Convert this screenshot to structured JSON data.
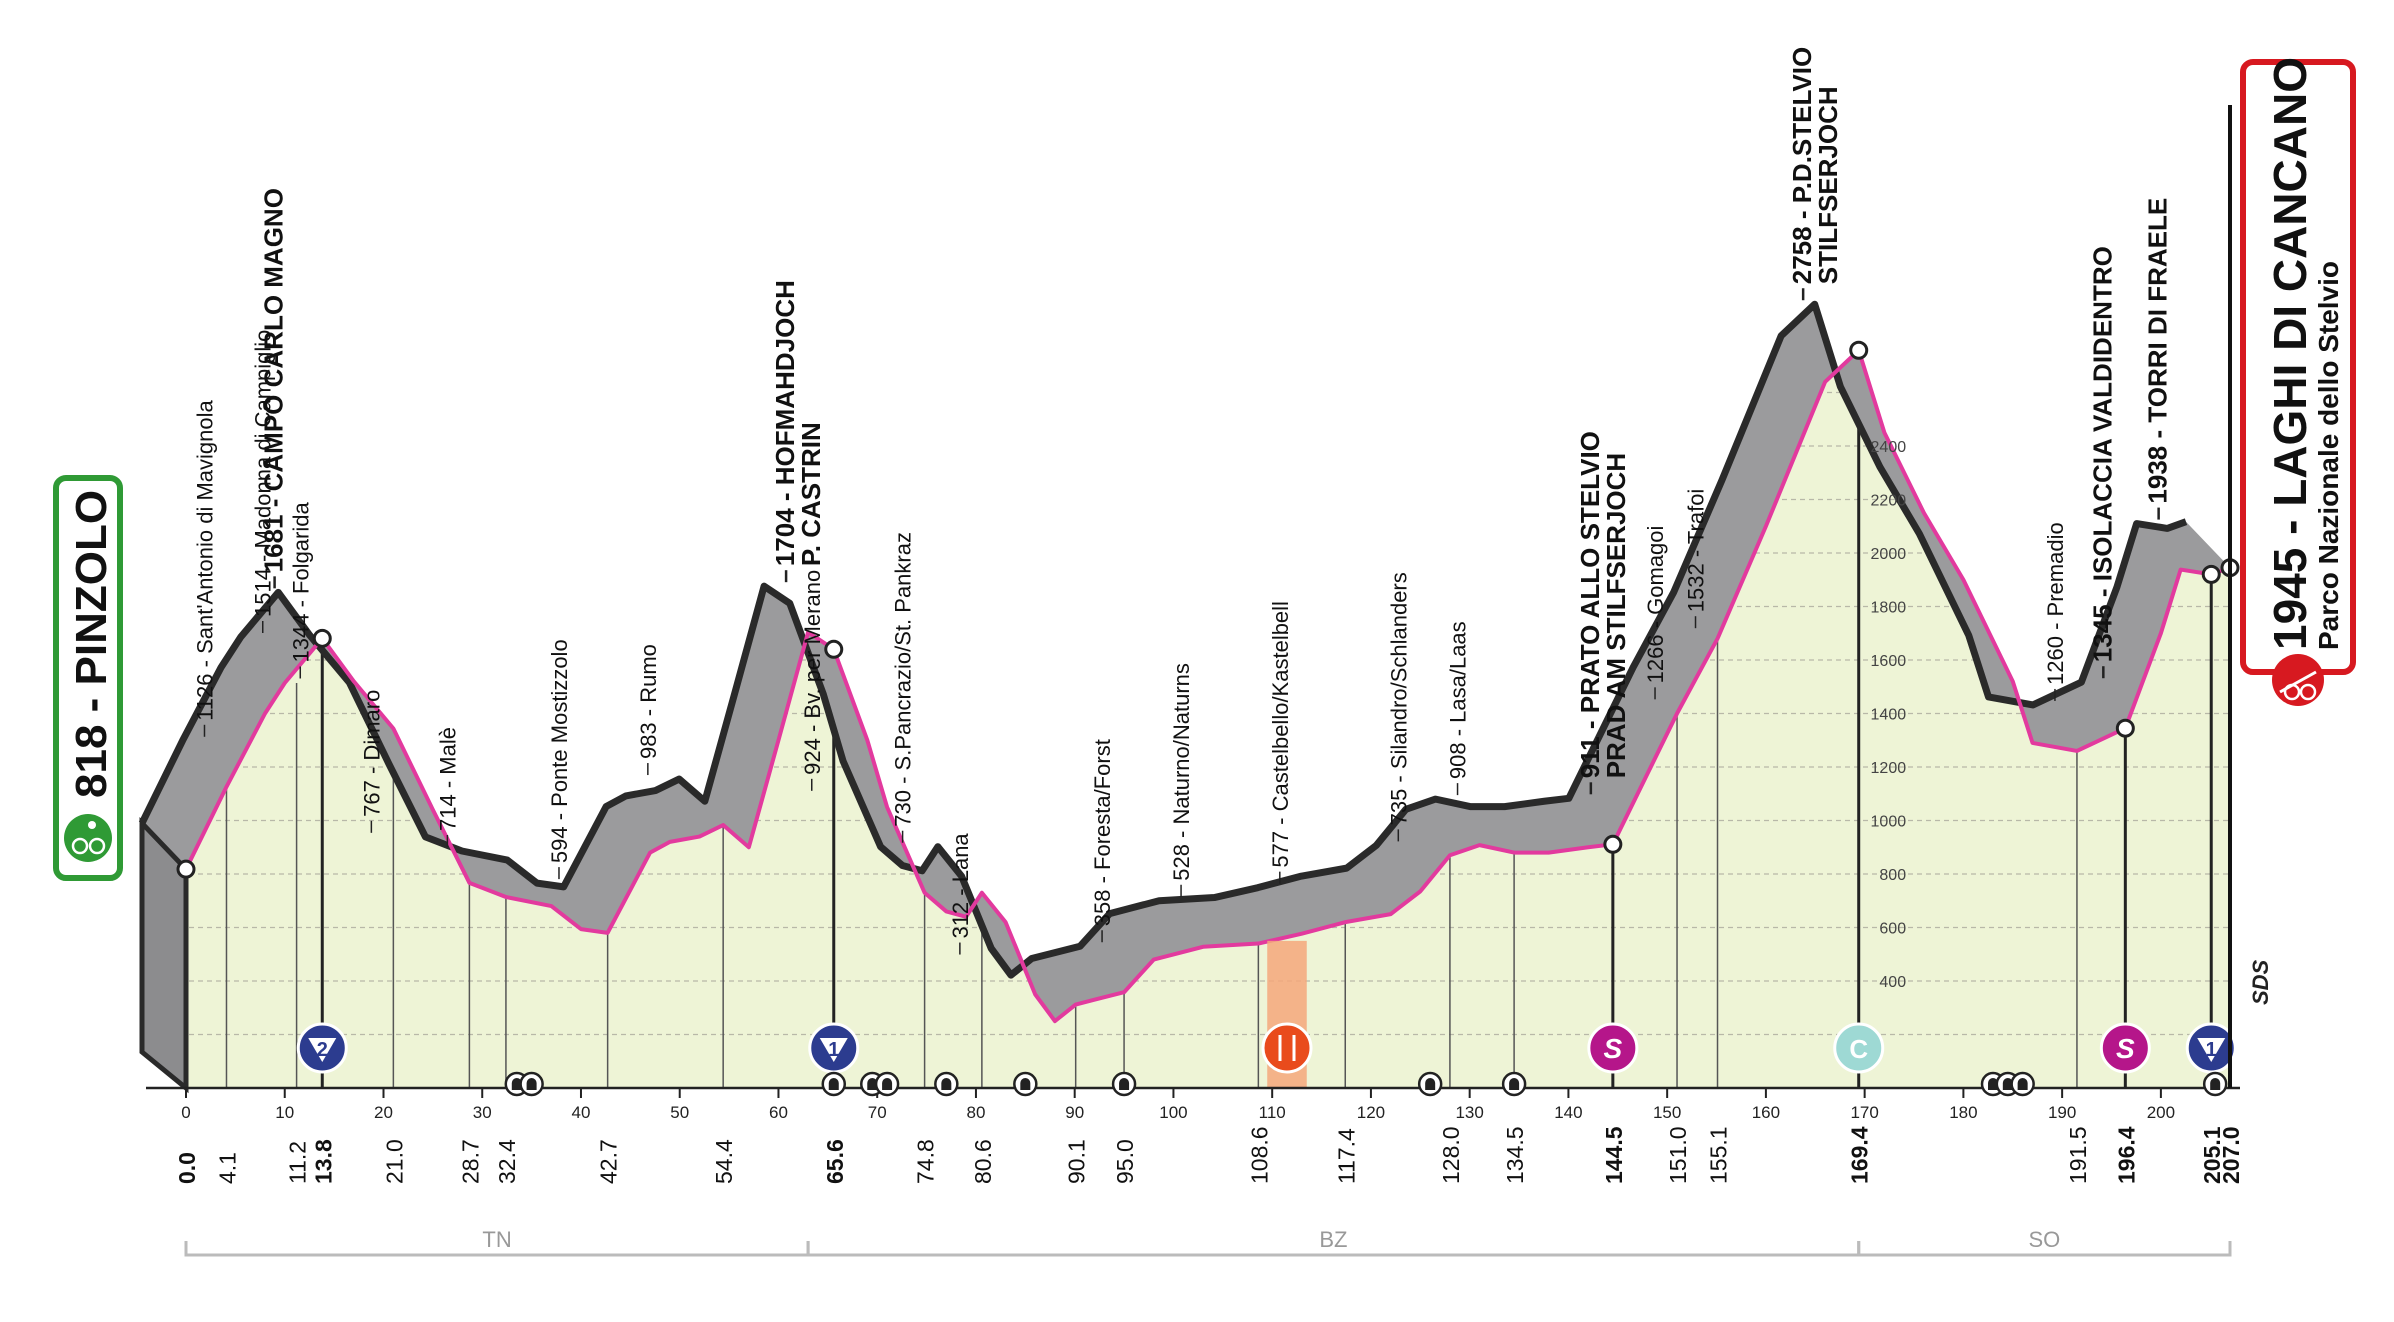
{
  "chart_data": {
    "type": "area",
    "title": "",
    "xlabel": "",
    "ylabel": "",
    "xlim": [
      0,
      207
    ],
    "ylim": [
      0,
      2800
    ],
    "colors": {
      "profile_fill": "#9b9b9d",
      "profile_edge": "#2a2a2a",
      "valley_fill": "#eef4d6",
      "route_line": "#e23a9e",
      "start_green": "#2f9a35",
      "finish_red": "#d71920",
      "feed_zone": "#f4a77b",
      "gpm_blue": "#2c3c8f",
      "sprint_magenta": "#b5168a",
      "cima_coppi": "#9ed9d4",
      "region_line": "#bbbbbb"
    },
    "start": {
      "altitude": "818",
      "name": "PINZOLO"
    },
    "finish": {
      "altitude": "1945",
      "name": "LAGHI DI CANCANO",
      "sub": "Parco Nazionale dello Stelvio"
    },
    "profile": [
      {
        "km": 0.0,
        "alt": 818
      },
      {
        "km": 4.1,
        "alt": 1126
      },
      {
        "km": 8.0,
        "alt": 1400
      },
      {
        "km": 10.0,
        "alt": 1514
      },
      {
        "km": 13.8,
        "alt": 1681
      },
      {
        "km": 17.0,
        "alt": 1520
      },
      {
        "km": 21.0,
        "alt": 1344
      },
      {
        "km": 25.0,
        "alt": 1040
      },
      {
        "km": 28.7,
        "alt": 767
      },
      {
        "km": 32.4,
        "alt": 714
      },
      {
        "km": 37.0,
        "alt": 680
      },
      {
        "km": 40.0,
        "alt": 594
      },
      {
        "km": 42.7,
        "alt": 580
      },
      {
        "km": 47.0,
        "alt": 880
      },
      {
        "km": 49.0,
        "alt": 920
      },
      {
        "km": 52.0,
        "alt": 940
      },
      {
        "km": 54.4,
        "alt": 983
      },
      {
        "km": 57.0,
        "alt": 900
      },
      {
        "km": 60.0,
        "alt": 1300
      },
      {
        "km": 63.0,
        "alt": 1704
      },
      {
        "km": 65.6,
        "alt": 1640
      },
      {
        "km": 69.0,
        "alt": 1300
      },
      {
        "km": 71.0,
        "alt": 1050
      },
      {
        "km": 74.8,
        "alt": 730
      },
      {
        "km": 77.0,
        "alt": 660
      },
      {
        "km": 79.0,
        "alt": 640
      },
      {
        "km": 80.6,
        "alt": 730
      },
      {
        "km": 83.0,
        "alt": 620
      },
      {
        "km": 86.0,
        "alt": 350
      },
      {
        "km": 88.0,
        "alt": 250
      },
      {
        "km": 90.1,
        "alt": 312
      },
      {
        "km": 92.0,
        "alt": 330
      },
      {
        "km": 95.0,
        "alt": 358
      },
      {
        "km": 98.0,
        "alt": 480
      },
      {
        "km": 103.0,
        "alt": 528
      },
      {
        "km": 108.6,
        "alt": 540
      },
      {
        "km": 113.0,
        "alt": 577
      },
      {
        "km": 117.4,
        "alt": 620
      },
      {
        "km": 122.0,
        "alt": 650
      },
      {
        "km": 125.0,
        "alt": 735
      },
      {
        "km": 128.0,
        "alt": 870
      },
      {
        "km": 131.0,
        "alt": 908
      },
      {
        "km": 134.5,
        "alt": 880
      },
      {
        "km": 138.0,
        "alt": 880
      },
      {
        "km": 142.0,
        "alt": 900
      },
      {
        "km": 144.5,
        "alt": 911
      },
      {
        "km": 151.0,
        "alt": 1400
      },
      {
        "km": 155.1,
        "alt": 1680
      },
      {
        "km": 160.0,
        "alt": 2100
      },
      {
        "km": 166.0,
        "alt": 2640
      },
      {
        "km": 169.4,
        "alt": 2758
      },
      {
        "km": 172.0,
        "alt": 2450
      },
      {
        "km": 176.0,
        "alt": 2150
      },
      {
        "km": 180.0,
        "alt": 1900
      },
      {
        "km": 185.0,
        "alt": 1520
      },
      {
        "km": 187.0,
        "alt": 1290
      },
      {
        "km": 191.5,
        "alt": 1260
      },
      {
        "km": 196.4,
        "alt": 1345
      },
      {
        "km": 200.0,
        "alt": 1700
      },
      {
        "km": 202.0,
        "alt": 1938
      },
      {
        "km": 205.1,
        "alt": 1920
      },
      {
        "km": 207.0,
        "alt": 1945
      }
    ],
    "y_ticks": [
      "400",
      "600",
      "800",
      "1000",
      "1200",
      "1400",
      "1600",
      "1800",
      "2000",
      "2200",
      "2400"
    ],
    "x_ticks": [
      "0",
      "10",
      "20",
      "30",
      "40",
      "50",
      "60",
      "70",
      "80",
      "90",
      "100",
      "110",
      "120",
      "130",
      "140",
      "150",
      "160",
      "170",
      "180",
      "190",
      "200"
    ],
    "km_labels": [
      {
        "km": 0.0,
        "text": "0.0",
        "bold": true
      },
      {
        "km": 4.1,
        "text": "4.1",
        "bold": false
      },
      {
        "km": 11.2,
        "text": "11.2",
        "bold": false
      },
      {
        "km": 13.8,
        "text": "13.8",
        "bold": true
      },
      {
        "km": 21.0,
        "text": "21.0",
        "bold": false
      },
      {
        "km": 28.7,
        "text": "28.7",
        "bold": false
      },
      {
        "km": 32.4,
        "text": "32.4",
        "bold": false
      },
      {
        "km": 42.7,
        "text": "42.7",
        "bold": false
      },
      {
        "km": 54.4,
        "text": "54.4",
        "bold": false
      },
      {
        "km": 65.6,
        "text": "65.6",
        "bold": true
      },
      {
        "km": 74.8,
        "text": "74.8",
        "bold": false
      },
      {
        "km": 80.6,
        "text": "80.6",
        "bold": false
      },
      {
        "km": 90.1,
        "text": "90.1",
        "bold": false
      },
      {
        "km": 95.0,
        "text": "95.0",
        "bold": false
      },
      {
        "km": 108.6,
        "text": "108.6",
        "bold": false
      },
      {
        "km": 117.4,
        "text": "117.4",
        "bold": false
      },
      {
        "km": 128.0,
        "text": "128.0",
        "bold": false
      },
      {
        "km": 134.5,
        "text": "134.5",
        "bold": false
      },
      {
        "km": 144.5,
        "text": "144.5",
        "bold": true
      },
      {
        "km": 151.0,
        "text": "151.0",
        "bold": false
      },
      {
        "km": 155.1,
        "text": "155.1",
        "bold": false
      },
      {
        "km": 169.4,
        "text": "169.4",
        "bold": true
      },
      {
        "km": 191.5,
        "text": "191.5",
        "bold": false
      },
      {
        "km": 196.4,
        "text": "196.4",
        "bold": true
      },
      {
        "km": 205.1,
        "text": "205.1",
        "bold": true
      },
      {
        "km": 207.0,
        "text": "207.0",
        "bold": true
      }
    ],
    "place_labels": [
      {
        "km": 4.1,
        "alt": 1126,
        "text": "1126 - Sant'Antonio di Mavignola",
        "bold": false
      },
      {
        "km": 10.0,
        "alt": 1514,
        "text": "1514 - Madonna di Campiglio",
        "bold": false
      },
      {
        "km": 11.2,
        "alt": 1681,
        "text": "1681 - CAMPO CARLO MAGNO",
        "bold": true
      },
      {
        "km": 13.8,
        "alt": 1344,
        "text": "1344 - Folgarida",
        "bold": false
      },
      {
        "km": 21.0,
        "alt": 767,
        "text": "767 - Dimaro",
        "bold": false
      },
      {
        "km": 28.7,
        "alt": 714,
        "text": "714 - Malè",
        "bold": false
      },
      {
        "km": 40.0,
        "alt": 594,
        "text": "594 - Ponte Mostizzolo",
        "bold": false
      },
      {
        "km": 49.0,
        "alt": 983,
        "text": "983 - Rumo",
        "bold": false
      },
      {
        "km": 63.0,
        "alt": 1704,
        "text": "1704 - HOFMAHDJOCH",
        "bold": true,
        "second": "P. CASTRIN"
      },
      {
        "km": 65.6,
        "alt": 924,
        "text": "924 - Bv. per Merano",
        "bold": false
      },
      {
        "km": 74.8,
        "alt": 730,
        "text": "730 - S.Pancrazio/St. Pankraz",
        "bold": false
      },
      {
        "km": 80.6,
        "alt": 312,
        "text": "312 - Lana",
        "bold": false
      },
      {
        "km": 95.0,
        "alt": 358,
        "text": "358 - Foresta/Forst",
        "bold": false
      },
      {
        "km": 103.0,
        "alt": 528,
        "text": "528 - Naturno/Naturns",
        "bold": false
      },
      {
        "km": 113.0,
        "alt": 577,
        "text": "577 - Castelbello/Kastelbell",
        "bold": false
      },
      {
        "km": 125.0,
        "alt": 735,
        "text": "735 - Silandro/Schlanders",
        "bold": false
      },
      {
        "km": 131.0,
        "alt": 908,
        "text": "908 - Lasa/Laas",
        "bold": false
      },
      {
        "km": 144.5,
        "alt": 911,
        "text": "911 - PRATO ALLO STELVIO",
        "bold": true,
        "second": "PRAD AM STILFSERJOCH"
      },
      {
        "km": 151.0,
        "alt": 1266,
        "text": "1266 - Gomagoi",
        "bold": false
      },
      {
        "km": 155.1,
        "alt": 1532,
        "text": "1532 - Trafoi",
        "bold": false
      },
      {
        "km": 166.0,
        "alt": 2758,
        "text": "2758 - P.D.STELVIO",
        "bold": true,
        "second": "STILFSERJOCH"
      },
      {
        "km": 191.5,
        "alt": 1260,
        "text": "1260 - Premadio",
        "bold": false
      },
      {
        "km": 196.4,
        "alt": 1345,
        "text": "1345 - ISOLACCIA VALDIDENTRO",
        "bold": true
      },
      {
        "km": 202.0,
        "alt": 1938,
        "text": "1938 - TORRI DI FRAELE",
        "bold": true
      }
    ],
    "markers": [
      {
        "km": 13.8,
        "kind": "gpm",
        "label": "2"
      },
      {
        "km": 65.6,
        "kind": "gpm",
        "label": "1"
      },
      {
        "km": 144.5,
        "kind": "sprint",
        "label": "S"
      },
      {
        "km": 169.4,
        "kind": "coppi",
        "label": "C"
      },
      {
        "km": 196.4,
        "kind": "sprint",
        "label": "S"
      },
      {
        "km": 205.1,
        "kind": "gpm",
        "label": "1"
      }
    ],
    "feed_zone": {
      "from": 109.5,
      "to": 113.5
    },
    "tunnels": [
      33.5,
      35.0,
      65.6,
      69.5,
      71.0,
      77.0,
      85.0,
      95.0,
      126.0,
      134.5,
      183.0,
      184.5,
      186.0,
      205.5
    ],
    "regions": [
      "TN",
      "BZ",
      "SO"
    ],
    "watermark": "SDS"
  }
}
